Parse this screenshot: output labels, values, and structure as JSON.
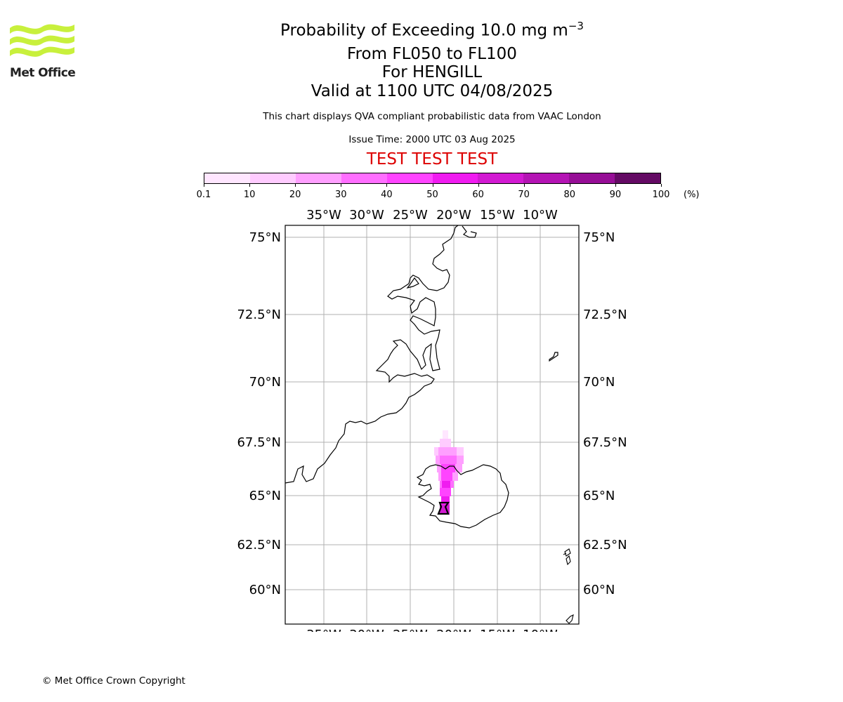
{
  "logo": {
    "text": "Met Office",
    "color": "#c8f03c"
  },
  "title": {
    "main": "Probability of Exceeding 10.0 mg m",
    "main_sup": "−3",
    "line2": "From FL050 to FL100",
    "line3": "For HENGILL",
    "line4": "Valid at 1100 UTC 04/08/2025"
  },
  "subtitle": "This chart displays QVA compliant probabilistic data from VAAC London",
  "issue_time": "Issue Time: 2000 UTC 03 Aug 2025",
  "test_banner": {
    "text": "TEST TEST TEST",
    "color": "#dd0000"
  },
  "colorbar": {
    "ticks": [
      "0.1",
      "10",
      "20",
      "30",
      "40",
      "50",
      "60",
      "70",
      "80",
      "90",
      "100"
    ],
    "unit": "(%)",
    "colors": [
      "#ffe6ff",
      "#ffcbff",
      "#ff9fff",
      "#ff6eff",
      "#ff44ff",
      "#f01cf0",
      "#d21ad2",
      "#b414b4",
      "#960e96",
      "#640a64"
    ]
  },
  "map": {
    "lon_labels": [
      "35°W",
      "30°W",
      "25°W",
      "20°W",
      "15°W",
      "10°W"
    ],
    "lat_labels": [
      "75°N",
      "72.5°N",
      "70°N",
      "67.5°N",
      "65°N",
      "62.5°N",
      "60°N"
    ],
    "volcano": "HENGILL"
  },
  "copyright": "© Met Office Crown Copyright"
}
